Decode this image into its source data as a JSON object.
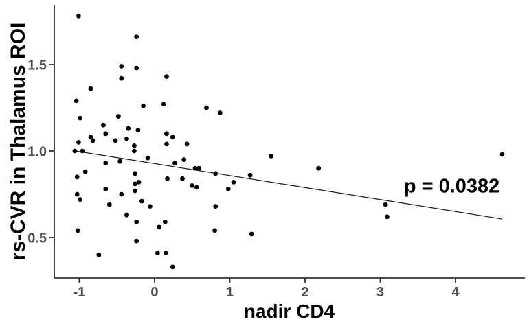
{
  "figure": {
    "background_color": "#ffffff"
  },
  "chart_data": {
    "type": "scatter",
    "title": "",
    "xlabel": "nadir CD4",
    "ylabel": "rs-CVR in Thalamus ROI",
    "x_tick_values": [
      -1,
      0,
      1,
      2,
      3,
      4
    ],
    "x_tick_labels": [
      "-1",
      "0",
      "1",
      "2",
      "3",
      "4"
    ],
    "y_tick_values": [
      0.5,
      1.0,
      1.5
    ],
    "y_tick_labels": [
      "0.5",
      "1.0",
      "1.5"
    ],
    "xlim": [
      -1.333,
      4.922
    ],
    "ylim": [
      0.266,
      1.841
    ],
    "grid": "off",
    "legend": "none",
    "point_color": "#000000",
    "line_color": "#1a1a1a",
    "axis_line_color": "#333333",
    "tick_text_color": "#4d4d4d",
    "annotation": {
      "text": "p = 0.0382",
      "x": 3.95,
      "y": 0.8
    },
    "regression_line": {
      "x1": -1.08,
      "y1": 1.002,
      "x2": 4.62,
      "y2": 0.607
    },
    "points": [
      [
        -1.01,
        1.78
      ],
      [
        -0.24,
        1.66
      ],
      [
        -0.44,
        1.49
      ],
      [
        -0.24,
        1.48
      ],
      [
        -0.44,
        1.42
      ],
      [
        0.16,
        1.43
      ],
      [
        -0.85,
        1.36
      ],
      [
        -1.04,
        1.29
      ],
      [
        -0.15,
        1.26
      ],
      [
        0.12,
        1.27
      ],
      [
        0.69,
        1.25
      ],
      [
        0.87,
        1.22
      ],
      [
        -0.99,
        1.19
      ],
      [
        -0.48,
        1.2
      ],
      [
        -0.68,
        1.15
      ],
      [
        -0.65,
        1.1
      ],
      [
        -0.35,
        1.13
      ],
      [
        -0.22,
        1.12
      ],
      [
        -0.37,
        1.07
      ],
      [
        0.16,
        1.1
      ],
      [
        0.24,
        1.08
      ],
      [
        0.43,
        1.04
      ],
      [
        0.16,
        1.04
      ],
      [
        -1.01,
        1.05
      ],
      [
        -0.85,
        1.08
      ],
      [
        -0.82,
        1.06
      ],
      [
        -1.06,
        1.0
      ],
      [
        -0.96,
        1.0
      ],
      [
        -0.27,
        1.03
      ],
      [
        -0.27,
        1.0
      ],
      [
        -0.52,
        1.06
      ],
      [
        -0.09,
        0.96
      ],
      [
        1.55,
        0.97
      ],
      [
        4.62,
        0.98
      ],
      [
        -0.65,
        0.93
      ],
      [
        -0.46,
        0.94
      ],
      [
        -0.92,
        0.88
      ],
      [
        -1.03,
        0.85
      ],
      [
        0.27,
        0.93
      ],
      [
        0.39,
        0.95
      ],
      [
        0.54,
        0.9
      ],
      [
        0.59,
        0.9
      ],
      [
        -0.26,
        0.87
      ],
      [
        0.17,
        0.84
      ],
      [
        0.37,
        0.84
      ],
      [
        -0.26,
        0.81
      ],
      [
        -0.21,
        0.82
      ],
      [
        -0.65,
        0.78
      ],
      [
        -1.03,
        0.75
      ],
      [
        -0.99,
        0.72
      ],
      [
        -0.44,
        0.75
      ],
      [
        -0.26,
        0.77
      ],
      [
        -0.6,
        0.69
      ],
      [
        -0.37,
        0.63
      ],
      [
        -0.24,
        0.59
      ],
      [
        -0.17,
        0.71
      ],
      [
        -0.06,
        0.68
      ],
      [
        0.06,
        0.56
      ],
      [
        0.14,
        0.59
      ],
      [
        -1.02,
        0.54
      ],
      [
        -0.24,
        0.48
      ],
      [
        -0.74,
        0.4
      ],
      [
        0.04,
        0.41
      ],
      [
        0.15,
        0.41
      ],
      [
        0.24,
        0.33
      ],
      [
        0.81,
        0.87
      ],
      [
        1.27,
        0.86
      ],
      [
        2.18,
        0.9
      ],
      [
        1.05,
        0.82
      ],
      [
        0.98,
        0.78
      ],
      [
        0.81,
        0.68
      ],
      [
        0.8,
        0.54
      ],
      [
        1.29,
        0.52
      ],
      [
        3.07,
        0.69
      ],
      [
        3.09,
        0.62
      ],
      [
        0.5,
        0.8
      ],
      [
        0.56,
        0.79
      ]
    ]
  }
}
